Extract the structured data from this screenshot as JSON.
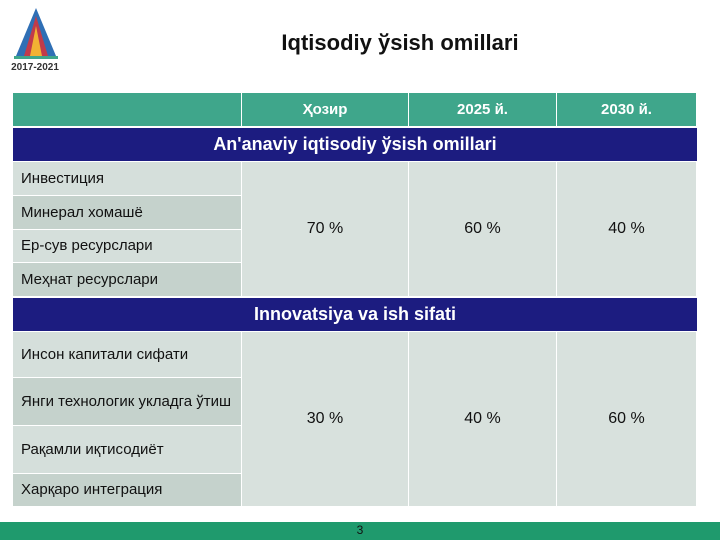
{
  "logo": {
    "years": "2017-2021"
  },
  "title": "Iqtisodiy ўsish omillari",
  "table": {
    "columns": [
      "Ҳозир",
      "2025 й.",
      "2030 й."
    ],
    "sections": [
      {
        "title": "An'anaviy iqtisodiy ўsish omillari",
        "rows": [
          "Инвестиция",
          "Минерал хомашё",
          "Ер-сув ресурслари",
          "Меҳнат ресурслари"
        ],
        "values": [
          "70 %",
          "60 %",
          "40 %"
        ]
      },
      {
        "title": "Innovatsiya va ish sifati",
        "rows": [
          "Инсон капитали сифати",
          "Янги технологик укладга ўтиш",
          "Рақамли иқтисодиёт",
          "Харқаро интеграция"
        ],
        "values": [
          "30 %",
          "40 %",
          "60 %"
        ]
      }
    ]
  },
  "page_number": "3"
}
